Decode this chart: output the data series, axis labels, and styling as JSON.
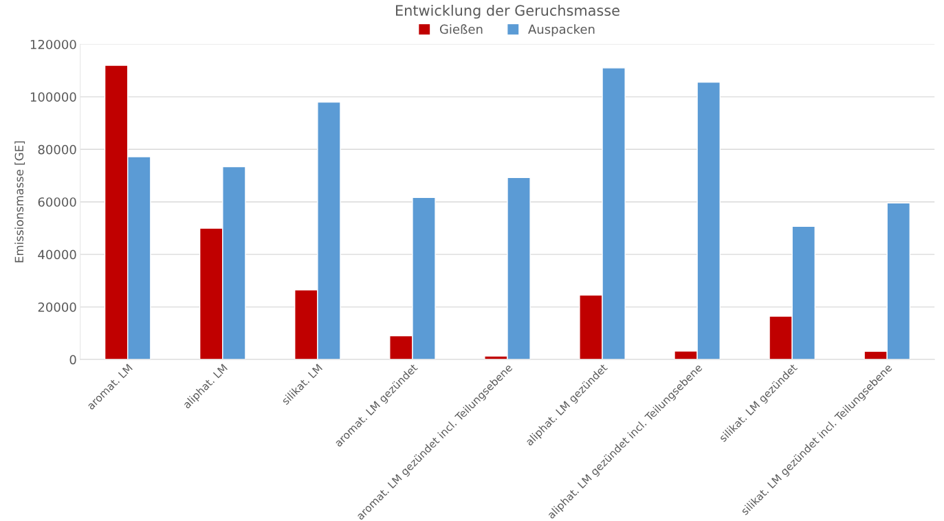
{
  "chart_data": {
    "type": "bar",
    "title": "Entwicklung der Geruchsmasse",
    "ylabel": "Emissionsmasse [GE]",
    "categories": [
      "aromat. LM",
      "aliphat. LM",
      "silikat. LM",
      "aromat. LM gezündet",
      "aromat. LM gezündet incl. Teilungsebene",
      "aliphat. LM gezündet",
      "aliphat. LM gezündet incl. Teilungsebene",
      "silikat. LM gezündet",
      "silikat. LM gezündet incl. Teilungsebene"
    ],
    "series": [
      {
        "name": "Gießen",
        "color": "#c00000",
        "values": [
          112000,
          50000,
          26500,
          9000,
          1300,
          24500,
          3200,
          16500,
          3100
        ]
      },
      {
        "name": "Auspacken",
        "color": "#5b9bd5",
        "values": [
          77200,
          73400,
          98000,
          61700,
          69300,
          111000,
          105600,
          50700,
          59600
        ]
      }
    ],
    "ylim": [
      0,
      120000
    ],
    "yticks": [
      0,
      20000,
      40000,
      60000,
      80000,
      100000,
      120000
    ],
    "grid": "y",
    "legend": "top"
  }
}
